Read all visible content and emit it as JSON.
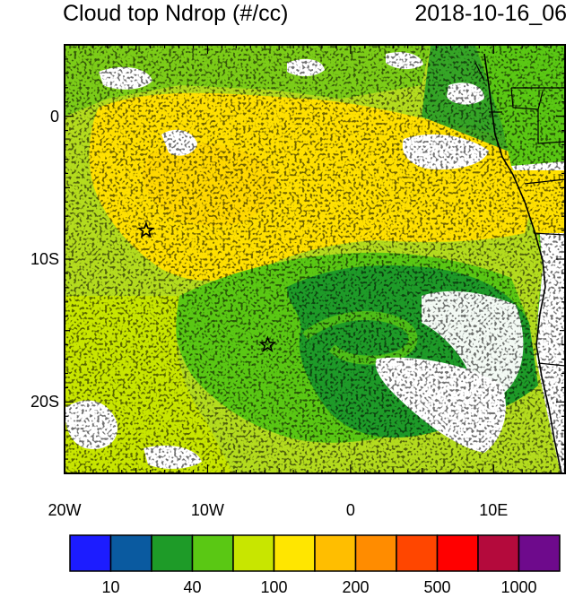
{
  "header": {
    "title": "Cloud top Ndrop (#/cc)",
    "datetime": "2018-10-16_06"
  },
  "map": {
    "lon_range": [
      -20,
      15
    ],
    "lat_range": [
      -25,
      5
    ],
    "lat_ticks": [
      {
        "value": 0,
        "label": "0"
      },
      {
        "value": -10,
        "label": "10S"
      },
      {
        "value": -20,
        "label": "20S"
      }
    ],
    "lon_ticks": [
      {
        "value": -20,
        "label": "20W"
      },
      {
        "value": -10,
        "label": "10W"
      },
      {
        "value": 0,
        "label": "0"
      },
      {
        "value": 10,
        "label": "10E"
      }
    ],
    "markers": [
      {
        "name": "star-marker-north",
        "lon": -14.3,
        "lat": -8.0
      },
      {
        "name": "star-marker-south",
        "lon": -5.8,
        "lat": -16.0
      }
    ]
  },
  "colorbar": {
    "colors": [
      "#1c1cff",
      "#0a5aa0",
      "#1e9b28",
      "#5ac814",
      "#c8e600",
      "#ffe600",
      "#ffbe00",
      "#ff8c00",
      "#ff4600",
      "#ff0000",
      "#b40a3c",
      "#6e0a8c"
    ],
    "labels": [
      {
        "index": 1,
        "text": "10"
      },
      {
        "index": 3,
        "text": "40"
      },
      {
        "index": 5,
        "text": "100"
      },
      {
        "index": 7,
        "text": "200"
      },
      {
        "index": 9,
        "text": "500"
      },
      {
        "index": 11,
        "text": "1000"
      }
    ]
  }
}
